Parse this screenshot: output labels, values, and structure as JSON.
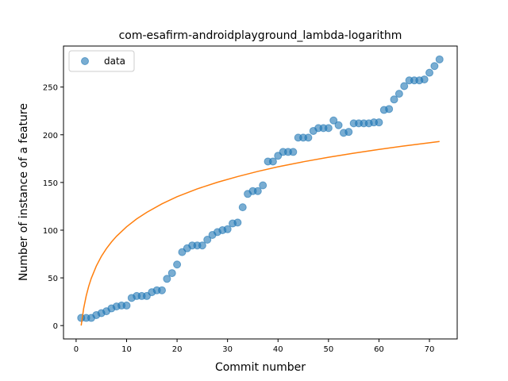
{
  "chart_data": {
    "type": "scatter",
    "title": "com-esafirm-androidplayground_lambda-logarithm",
    "xlabel": "Commit number",
    "ylabel": "Number of instance of a feature",
    "xlim": [
      -2.5,
      75.5
    ],
    "ylim": [
      -14,
      293
    ],
    "xticks": [
      0,
      10,
      20,
      30,
      40,
      50,
      60,
      70
    ],
    "yticks": [
      0,
      50,
      100,
      150,
      200,
      250
    ],
    "grid": false,
    "legend_position": "top-left",
    "series": [
      {
        "name": "data",
        "kind": "scatter",
        "color": "#1f77b4",
        "x": [
          1,
          2,
          3,
          4,
          5,
          6,
          7,
          8,
          9,
          10,
          11,
          12,
          13,
          14,
          15,
          16,
          17,
          18,
          19,
          20,
          21,
          22,
          23,
          24,
          25,
          26,
          27,
          28,
          29,
          30,
          31,
          32,
          33,
          34,
          35,
          36,
          37,
          38,
          39,
          40,
          41,
          42,
          43,
          44,
          45,
          46,
          47,
          48,
          49,
          50,
          51,
          52,
          53,
          54,
          55,
          56,
          57,
          58,
          59,
          60,
          61,
          62,
          63,
          64,
          65,
          66,
          67,
          68,
          69,
          70,
          71,
          72
        ],
        "y": [
          8,
          8,
          8,
          11,
          13,
          15,
          18,
          20,
          21,
          21,
          29,
          31,
          31,
          31,
          35,
          37,
          37,
          49,
          55,
          64,
          77,
          81,
          84,
          84,
          84,
          90,
          95,
          98,
          100,
          101,
          107,
          108,
          124,
          138,
          141,
          141,
          147,
          172,
          172,
          178,
          182,
          182,
          182,
          197,
          197,
          197,
          204,
          207,
          207,
          207,
          215,
          210,
          202,
          203,
          212,
          212,
          212,
          212,
          213,
          213,
          226,
          227,
          237,
          243,
          251,
          257,
          257,
          257,
          258,
          265,
          272,
          279
        ]
      },
      {
        "name": "",
        "kind": "line",
        "color": "#ff7f0e",
        "function": "logarithm",
        "x": [
          1,
          1.5,
          2,
          2.5,
          3,
          4,
          5,
          6,
          7,
          8,
          10,
          12,
          14,
          17,
          20,
          24,
          28,
          32,
          36,
          40,
          45,
          50,
          55,
          60,
          65,
          72
        ],
        "y": [
          0,
          18.2,
          31.2,
          41.3,
          49.5,
          62.4,
          72.5,
          80.7,
          87.6,
          93.6,
          103.6,
          111.8,
          118.7,
          127.6,
          135.1,
          143.3,
          150.2,
          156.2,
          161.6,
          166.4,
          171.7,
          176.4,
          180.7,
          184.6,
          188.3,
          193.0
        ]
      }
    ]
  },
  "legend": {
    "label": "data"
  }
}
